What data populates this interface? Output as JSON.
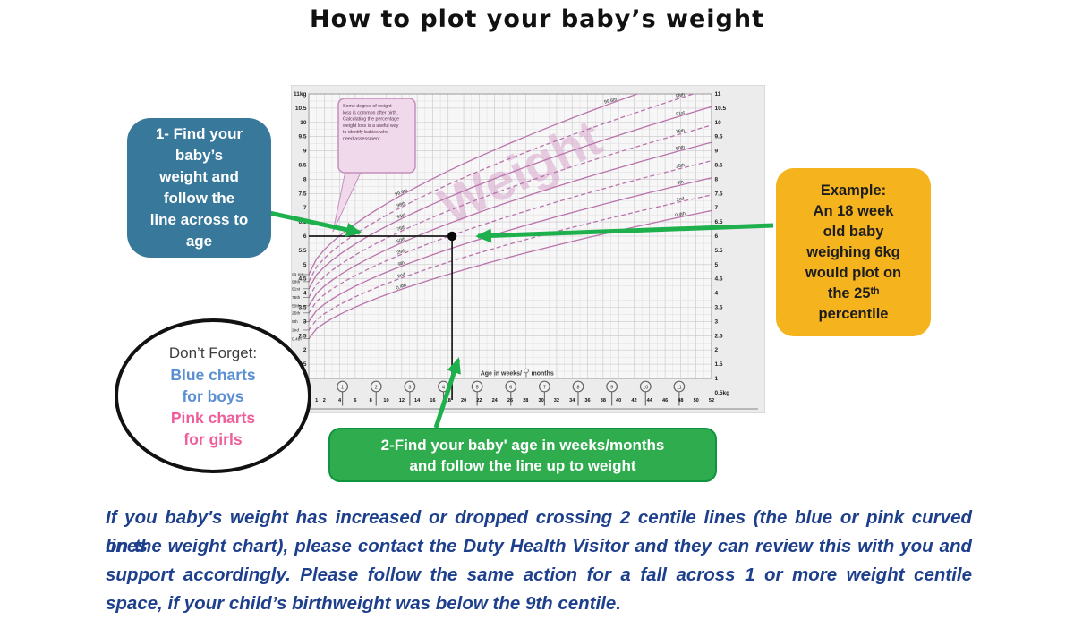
{
  "title": "How to plot your baby’s weight",
  "step1_box": {
    "text": "1- Find your\nbaby’s\nweight and\nfollow the\nline across to\nage",
    "bg": "#38799B"
  },
  "example_box": {
    "text": "Example:\nAn 18 week\nold baby\nweighing 6kg\nwould plot on\nthe 25ᵗʰ\npercentile",
    "bg": "#F5B31E"
  },
  "step2_box": {
    "text": "2-Find your baby' age in weeks/months\nand follow the line up to weight",
    "bg": "#2FAD4E"
  },
  "reminder_oval": {
    "heading": "Don’t Forget:",
    "blue_text": "Blue charts\nfor boys",
    "pink_text": "Pink charts\nfor girls",
    "blue_color": "#5A8FD2",
    "pink_color": "#EE5E9B"
  },
  "footer_note": {
    "color": "#1D3F8C",
    "lines": [
      "If you baby's weight has increased or dropped crossing 2 centile lines (the blue or pink curved lines",
      "on the weight chart), please contact the Duty Health Visitor and they can review this with you and",
      "support accordingly. Please follow the same action for a fall across 1 or more weight centile",
      "space, if your child’s birthweight was below the 9th centile."
    ]
  },
  "arrow_color": "#1FB04E",
  "chart_data": {
    "type": "line",
    "watermark": "Weight",
    "x_axis_label_left": "Age in weeks/",
    "x_axis_label_right": "months",
    "x_unit": "weeks",
    "xlim": [
      0,
      52
    ],
    "week_ticks": [
      1,
      2,
      4,
      6,
      8,
      10,
      12,
      14,
      16,
      18,
      20,
      22,
      24,
      26,
      28,
      30,
      32,
      34,
      36,
      38,
      40,
      42,
      44,
      46,
      48,
      50,
      52
    ],
    "month_ticks": [
      1,
      2,
      3,
      4,
      5,
      6,
      7,
      8,
      9,
      10,
      11
    ],
    "y_unit": "kg",
    "ylim": [
      0.5,
      11
    ],
    "y_tick_step": 0.5,
    "y_top_label": "11kg",
    "y_bottom_label": "0.5kg",
    "grid": true,
    "curve_color": "#B973AB",
    "centiles": [
      {
        "name": "99.6th",
        "birth_kg": 4.65,
        "week52_kg": 11.9,
        "dashed": false
      },
      {
        "name": "98th",
        "birth_kg": 4.4,
        "week52_kg": 11.2,
        "dashed": true
      },
      {
        "name": "91st",
        "birth_kg": 4.15,
        "week52_kg": 10.55,
        "dashed": false
      },
      {
        "name": "75th",
        "birth_kg": 3.85,
        "week52_kg": 9.9,
        "dashed": true
      },
      {
        "name": "50th",
        "birth_kg": 3.55,
        "week52_kg": 9.3,
        "dashed": false
      },
      {
        "name": "25th",
        "birth_kg": 3.3,
        "week52_kg": 8.65,
        "dashed": true
      },
      {
        "name": "9th",
        "birth_kg": 3.0,
        "week52_kg": 8.05,
        "dashed": false
      },
      {
        "name": "2nd",
        "birth_kg": 2.7,
        "week52_kg": 7.45,
        "dashed": true
      },
      {
        "name": "0.4th",
        "birth_kg": 2.4,
        "week52_kg": 6.9,
        "dashed": false
      }
    ],
    "example_point": {
      "week": 18.5,
      "weight_kg": 6,
      "centile": "25th"
    },
    "note_bubble_lines": [
      "Some degree of weight",
      "loss is common after birth.",
      "Calculating the percentage",
      "weight loss is a useful way",
      "to identify babies who",
      "need assessment."
    ]
  }
}
